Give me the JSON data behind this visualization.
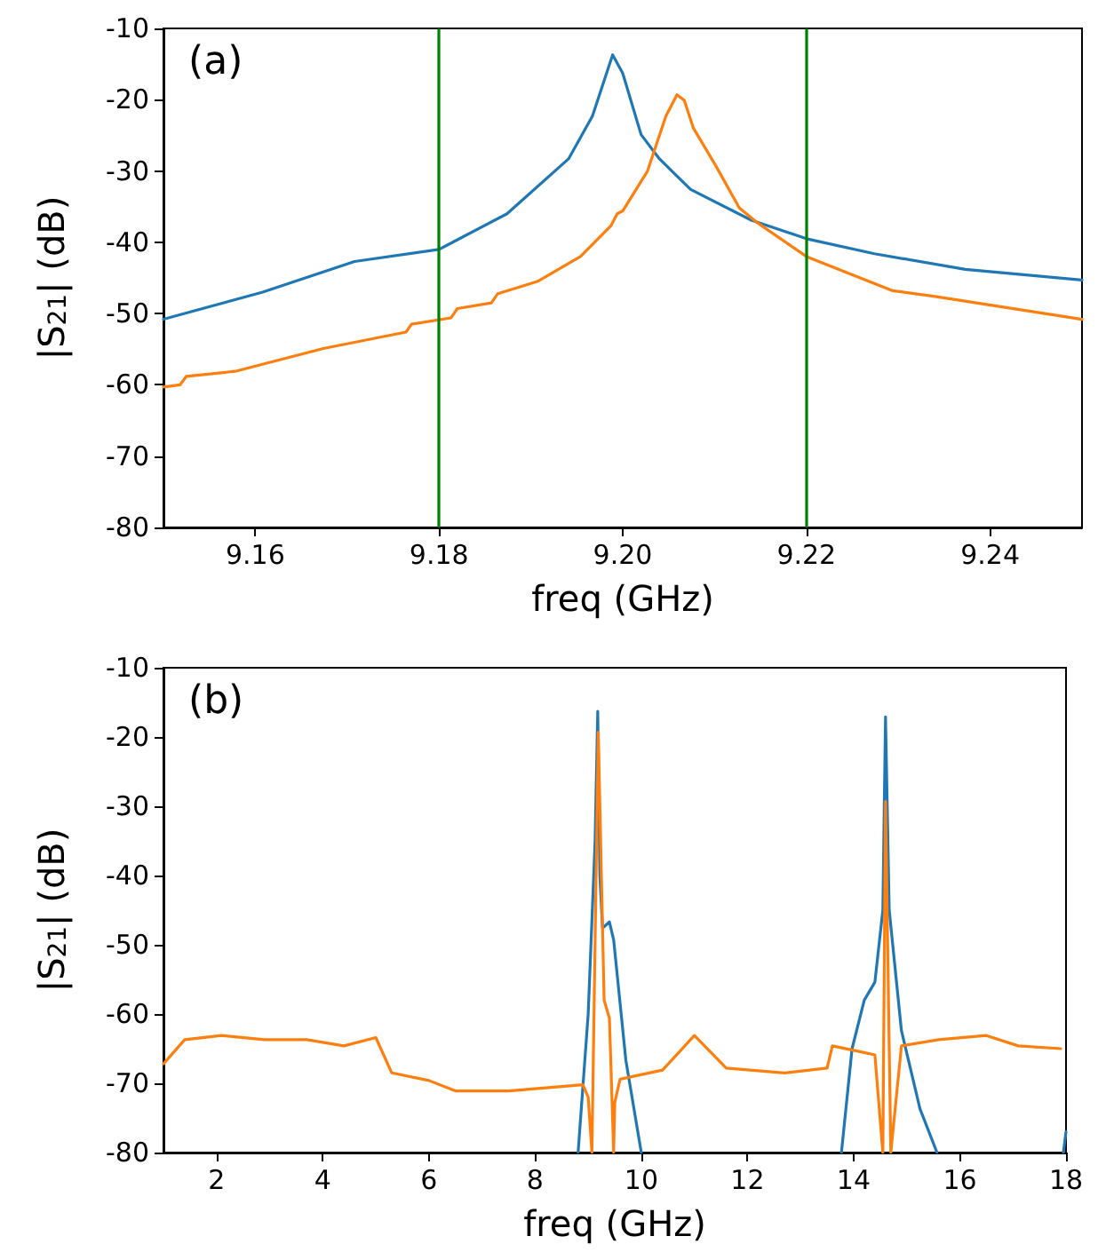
{
  "chart_data": [
    {
      "type": "line",
      "xlabel": "freq (GHz)",
      "ylabel": "|S$_{21}$| (dB)",
      "annotations": [
        "(a)"
      ],
      "xlim": [
        9.15,
        9.25
      ],
      "ylim": [
        -80,
        -10
      ],
      "xticks": [
        9.16,
        9.18,
        {
          "value": 9.2,
          "label": "9.20"
        },
        9.22,
        9.24
      ],
      "yticks": [
        -80,
        -70,
        -60,
        -50,
        -40,
        -30,
        -20,
        -10
      ],
      "grid": false,
      "marker": "none",
      "line_style": "solid",
      "ref_lines": [
        {
          "axis": "x",
          "value": 9.18,
          "color": "#008000"
        },
        {
          "axis": "x",
          "value": 9.22,
          "color": "#008000"
        }
      ],
      "series": [
        {
          "color": "#1f77b4",
          "x": [
            9.15,
            9.1608,
            9.1708,
            9.18,
            9.1874,
            9.1941,
            9.1967,
            9.1989,
            9.2,
            9.202,
            9.204,
            9.2074,
            9.214,
            9.22,
            9.2274,
            9.2373,
            9.25
          ],
          "values": [
            -50.8,
            -47.0,
            -42.7,
            -41.0,
            -36.0,
            -28.3,
            -22.3,
            -13.7,
            -16.3,
            -24.9,
            -28.3,
            -32.6,
            -36.9,
            -39.5,
            -41.6,
            -43.8,
            -45.3
          ]
        },
        {
          "color": "#ff7f0e",
          "x": [
            9.15,
            9.1518,
            9.1525,
            9.1578,
            9.1674,
            9.1764,
            9.177,
            9.1813,
            9.182,
            9.1857,
            9.1864,
            9.1907,
            9.1954,
            9.1987,
            9.1994,
            9.2,
            9.2027,
            9.2047,
            9.2059,
            9.2067,
            9.2077,
            9.2101,
            9.2127,
            9.2147,
            9.22,
            9.2294,
            9.234,
            9.25
          ],
          "values": [
            -60.3,
            -60.0,
            -58.8,
            -58.1,
            -54.9,
            -52.6,
            -51.5,
            -50.6,
            -49.3,
            -48.5,
            -47.2,
            -45.5,
            -42.0,
            -37.7,
            -36.0,
            -35.6,
            -30.0,
            -22.3,
            -19.3,
            -20.1,
            -24.0,
            -29.2,
            -35.2,
            -37.3,
            -42.0,
            -46.8,
            -47.6,
            -50.8
          ]
        }
      ]
    },
    {
      "type": "line",
      "xlabel": "freq (GHz)",
      "ylabel": "|S$_{21}$| (dB)",
      "annotations": [
        "(b)"
      ],
      "xlim": [
        1,
        18
      ],
      "ylim": [
        -80,
        -10
      ],
      "xticks": [
        2,
        4,
        6,
        8,
        10,
        12,
        14,
        16,
        18
      ],
      "yticks": [
        -80,
        -70,
        -60,
        -50,
        -40,
        -30,
        -20,
        -10
      ],
      "grid": false,
      "marker": "none",
      "line_style": "solid",
      "series": [
        {
          "color": "#1f77b4",
          "x": [
            8.81,
            9.0,
            9.13,
            9.18,
            9.22,
            9.27,
            9.4,
            9.48,
            9.71,
            10.0,
            10.01,
            13.76,
            13.77,
            13.97,
            14.2,
            14.4,
            14.55,
            14.6,
            14.67,
            14.9,
            15.25,
            15.57,
            15.58,
            17.95,
            18.0
          ],
          "values": [
            -80,
            -60,
            -35,
            -16.3,
            -40,
            -47.6,
            -46.7,
            -49.3,
            -66.7,
            -80,
            null,
            null,
            -80,
            -65,
            -58,
            -55.4,
            -45,
            -17.1,
            -45,
            -62.4,
            -73.7,
            -80,
            null,
            -80,
            -77
          ]
        },
        {
          "color": "#ff7f0e",
          "x": [
            1.0,
            1.4,
            2.1,
            2.9,
            3.7,
            4.4,
            5.0,
            5.3,
            6.0,
            6.5,
            7.5,
            8.9,
            9.0,
            9.07,
            9.19,
            9.3,
            9.4,
            9.48,
            9.5,
            9.6,
            10.4,
            11.0,
            11.6,
            12.7,
            13.5,
            13.6,
            14.1,
            14.4,
            14.55,
            14.6,
            14.7,
            14.9,
            15.6,
            16.5,
            17.1,
            17.9
          ],
          "values": [
            -67.2,
            -63.7,
            -63.1,
            -63.7,
            -63.7,
            -64.6,
            -63.4,
            -68.5,
            -69.6,
            -71.1,
            -71.1,
            -70.2,
            -72.0,
            -80,
            -19.3,
            -58,
            -60.6,
            -80,
            -72.8,
            -69.4,
            -68.1,
            -63.1,
            -67.8,
            -68.5,
            -67.8,
            -64.6,
            -65.4,
            -65.9,
            -80,
            -29.3,
            -80,
            -64.6,
            -63.7,
            -63.1,
            -64.6,
            -65.0
          ]
        }
      ]
    }
  ]
}
